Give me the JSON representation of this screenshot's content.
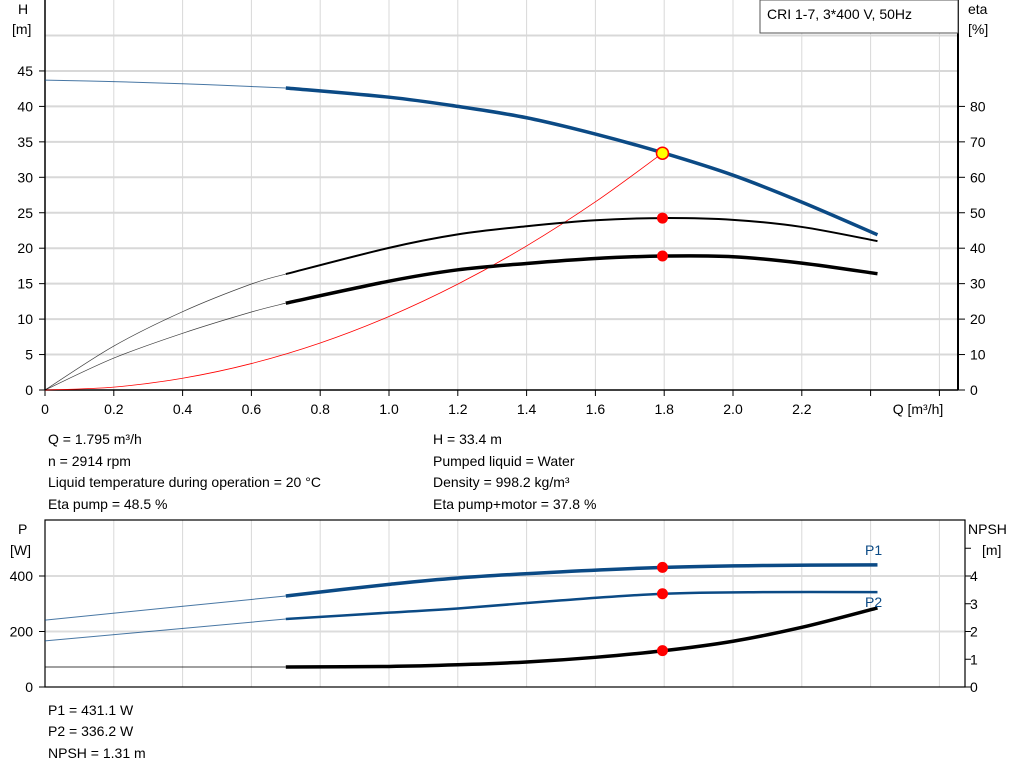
{
  "chart_data": [
    {
      "type": "line",
      "title": "CRI 1-7, 3*400 V, 50Hz",
      "xlabel": "Q [m³/h]",
      "ylabel": "H\n[m]",
      "ylabel_left_lines": [
        "H",
        "[m]"
      ],
      "ylabel_right_lines": [
        "eta",
        "[%]"
      ],
      "xlim": [
        0,
        2.6
      ],
      "ylim_left": [
        0,
        50
      ],
      "ylim_right": [
        0,
        100
      ],
      "x_ticks": [
        "0",
        "0.2",
        "0.4",
        "0.6",
        "0.8",
        "1.0",
        "1.2",
        "1.4",
        "1.6",
        "1.8",
        "2.0",
        "2.2"
      ],
      "y_ticks_left": [
        "0",
        "5",
        "10",
        "15",
        "20",
        "25",
        "30",
        "35",
        "40",
        "45"
      ],
      "y_ticks_right": [
        "0",
        "10",
        "20",
        "30",
        "40",
        "50",
        "60",
        "70",
        "80"
      ],
      "grid": true,
      "legend": "top-right",
      "series": [
        {
          "key": "H",
          "axis": "left",
          "color": "#0b4a85",
          "x": [
            0,
            0.2,
            0.4,
            0.6,
            0.7,
            1.0,
            1.2,
            1.4,
            1.6,
            1.8,
            2.0,
            2.2,
            2.42
          ],
          "y": [
            43.7,
            43.5,
            43.2,
            42.8,
            42.6,
            41.3,
            40.0,
            38.4,
            36.1,
            33.4,
            30.3,
            26.5,
            21.9
          ]
        },
        {
          "key": "eta_pump",
          "axis": "right",
          "color": "#000000",
          "x": [
            0,
            0.2,
            0.4,
            0.6,
            0.7,
            1.0,
            1.2,
            1.4,
            1.6,
            1.8,
            2.0,
            2.2,
            2.42
          ],
          "y": [
            0,
            12.4,
            22.1,
            29.9,
            32.7,
            40.1,
            43.9,
            46.2,
            47.9,
            48.5,
            48.0,
            46.0,
            42.0
          ]
        },
        {
          "key": "eta_pump_motor",
          "axis": "right",
          "color": "#000000",
          "x": [
            0,
            0.2,
            0.4,
            0.6,
            0.7,
            1.0,
            1.2,
            1.4,
            1.6,
            1.8,
            2.0,
            2.2,
            2.42
          ],
          "y": [
            0,
            9.0,
            16.0,
            22.0,
            24.5,
            30.7,
            33.9,
            35.7,
            37.1,
            37.8,
            37.6,
            35.8,
            32.8
          ]
        },
        {
          "key": "system_curve",
          "axis": "left",
          "color": "#ff0000",
          "x": [
            0,
            0.2,
            0.4,
            0.6,
            0.8,
            1.0,
            1.2,
            1.4,
            1.6,
            1.795
          ],
          "y": [
            0,
            0.41,
            1.66,
            3.73,
            6.63,
            10.37,
            14.93,
            20.32,
            26.54,
            33.4
          ]
        }
      ],
      "operating_points": [
        {
          "series": "H",
          "x": 1.795,
          "y": 33.4,
          "color": "#ffff00"
        },
        {
          "series": "eta_pump",
          "x": 1.795,
          "y": 48.5,
          "color": "#ff0000"
        },
        {
          "series": "eta_pump_motor",
          "x": 1.795,
          "y": 37.8,
          "color": "#ff0000"
        }
      ]
    },
    {
      "type": "line",
      "ylabel_left_lines": [
        "P",
        "[W]"
      ],
      "ylabel_right_lines": [
        "NPSH",
        "[m]"
      ],
      "xlim": [
        0,
        2.6
      ],
      "ylim_left": [
        0,
        600
      ],
      "ylim_right": [
        0,
        6
      ],
      "y_ticks_left": [
        "0",
        "200",
        "400"
      ],
      "y_ticks_right": [
        "0",
        "1",
        "2",
        "3",
        "4"
      ],
      "grid": true,
      "series": [
        {
          "key": "P1",
          "name": "P1",
          "axis": "left",
          "color": "#0b4a85",
          "x": [
            0,
            0.7,
            1.0,
            1.2,
            1.5,
            1.8,
            2.1,
            2.42
          ],
          "y": [
            241,
            328,
            370,
            393,
            415,
            431.1,
            438,
            440
          ]
        },
        {
          "key": "P2",
          "name": "P2",
          "axis": "left",
          "color": "#0b4a85",
          "x": [
            0,
            0.7,
            1.0,
            1.2,
            1.5,
            1.8,
            2.1,
            2.42
          ],
          "y": [
            166,
            245,
            268,
            283,
            312,
            336.2,
            342,
            342
          ]
        },
        {
          "key": "NPSH",
          "axis": "right",
          "color": "#000000",
          "x": [
            0,
            0.7,
            1.0,
            1.2,
            1.4,
            1.6,
            1.8,
            2.0,
            2.2,
            2.42
          ],
          "y": [
            0.72,
            0.72,
            0.74,
            0.8,
            0.9,
            1.07,
            1.31,
            1.65,
            2.15,
            2.85
          ]
        }
      ],
      "operating_points": [
        {
          "series": "P1",
          "x": 1.795,
          "y": 431.1,
          "color": "#ff0000"
        },
        {
          "series": "P2",
          "x": 1.795,
          "y": 336.2,
          "color": "#ff0000"
        },
        {
          "series": "NPSH",
          "x": 1.795,
          "y": 1.31,
          "color": "#ff0000"
        }
      ]
    }
  ],
  "info_top": {
    "q": "Q = 1.795 m³/h",
    "n": "n = 2914 rpm",
    "liquid_temp": "Liquid temperature during operation = 20 °C",
    "eta_pump": "Eta pump = 48.5 %",
    "h": "H = 33.4 m",
    "pumped_liquid": "Pumped liquid = Water",
    "density": "Density = 998.2 kg/m³",
    "eta_pump_motor": "Eta pump+motor = 37.8 %"
  },
  "info_bottom": {
    "p1": "P1 = 431.1 W",
    "p2": "P2 = 336.2 W",
    "npsh": "NPSH = 1.31 m"
  }
}
